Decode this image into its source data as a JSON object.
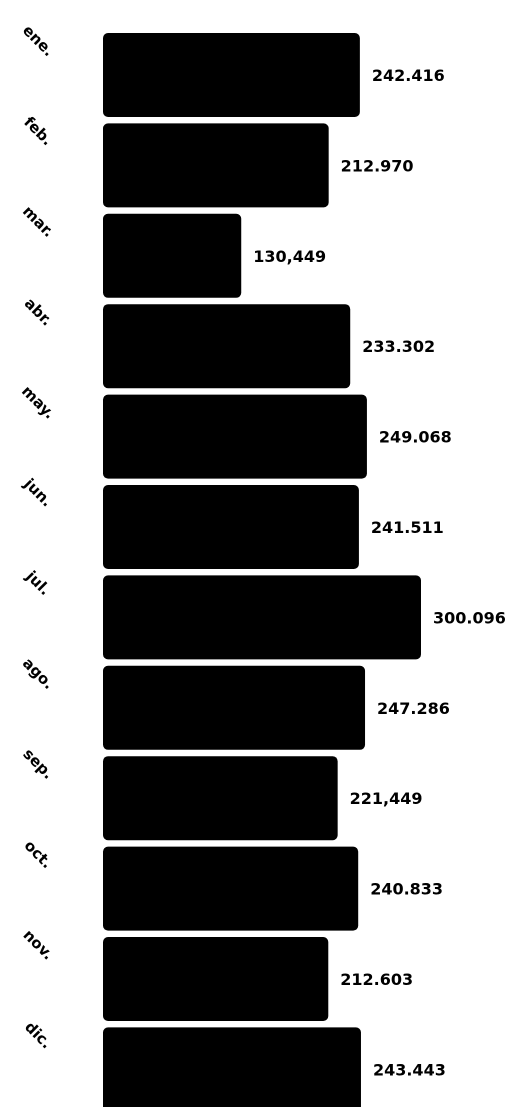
{
  "chart_data": {
    "type": "bar",
    "orientation": "horizontal",
    "categories": [
      "ene.",
      "feb.",
      "mar.",
      "abr.",
      "may.",
      "jun.",
      "jul.",
      "ago.",
      "sep.",
      "oct.",
      "nov.",
      "dic."
    ],
    "values": [
      242416,
      212970,
      130449,
      233302,
      249068,
      241511,
      300096,
      247286,
      221449,
      240833,
      212603,
      243443
    ],
    "value_labels": [
      "242.416",
      "212.970",
      "130,449",
      "233.302",
      "249.068",
      "241.511",
      "300.096",
      "247.286",
      "221,449",
      "240.833",
      "212.603",
      "243.443"
    ],
    "title": "",
    "xlabel": "",
    "ylabel": "",
    "xlim": [
      0,
      300096
    ],
    "grid": false,
    "legend": "none",
    "bar_color": "#000000",
    "text_color": "#000000",
    "background_color": "#ffffff"
  }
}
